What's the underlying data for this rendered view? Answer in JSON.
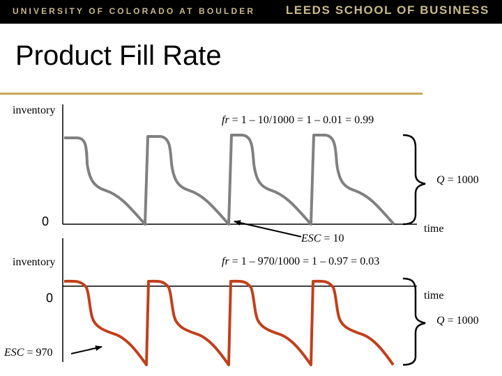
{
  "header": {
    "left_text": "UNIVERSITY OF COLORADO AT BOULDER",
    "right_text": "LEEDS SCHOOL OF BUSINESS",
    "accent_color": "#c9b98a"
  },
  "slide": {
    "title": "Product Fill Rate",
    "rule_color": "#c8a65a"
  },
  "top_panel": {
    "y_label": "inventory",
    "zero_label": "0",
    "x_label": "time",
    "formula_var": "fr",
    "formula_rest": " = 1 – 10/1000 = 1 – 0.01 = 0.99",
    "q_var": "Q",
    "q_rest": " = 1000",
    "esc_var": "ESC",
    "esc_rest": " = 10",
    "line_color": "#808080"
  },
  "bottom_panel": {
    "y_label": "inventory",
    "zero_label": "0",
    "x_label": "time",
    "formula_var": "fr",
    "formula_rest": " = 1 – 970/1000 = 1 – 0.97 = 0.03",
    "q_var": "Q",
    "q_rest": " = 1000",
    "esc_var": "ESC",
    "esc_rest": " = 970",
    "line_color": "#c0401c"
  }
}
